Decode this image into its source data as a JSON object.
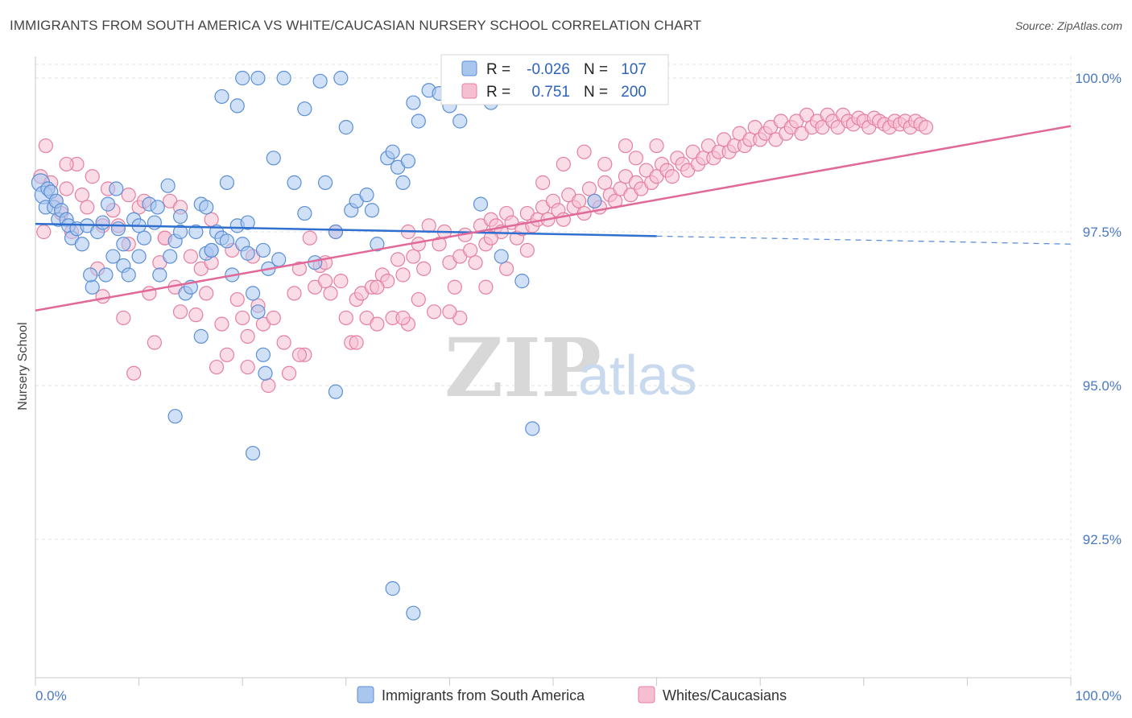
{
  "header": {
    "title": "IMMIGRANTS FROM SOUTH AMERICA VS WHITE/CAUCASIAN NURSERY SCHOOL CORRELATION CHART",
    "source": "Source: ZipAtlas.com"
  },
  "watermark": {
    "zip": "ZIP",
    "atlas": "atlas"
  },
  "colors": {
    "blue": "#5b8fd6",
    "blue_fill": "#a9c6ee",
    "blue_line": "#2f6fcf",
    "pink": "#e67fa2",
    "pink_fill": "#f6bfd1",
    "pink_line": "#e0699a",
    "tick_text": "#4a78c2"
  },
  "legend": {
    "r_label": "R =",
    "n_label": "N =",
    "series": [
      {
        "r": "-0.026",
        "n": "107"
      },
      {
        "r": "0.751",
        "n": "200"
      }
    ]
  },
  "bottom_legend": [
    "Immigrants from South America",
    "Whites/Caucasians"
  ],
  "chart_data": {
    "type": "scatter",
    "title": "IMMIGRANTS FROM SOUTH AMERICA VS WHITE/CAUCASIAN NURSERY SCHOOL CORRELATION CHART",
    "xlabel": "",
    "ylabel": "Nursery School",
    "xlim": [
      0,
      100
    ],
    "ylim": [
      90.5,
      100.5
    ],
    "x_tick_labels": [
      "0.0%",
      "100.0%"
    ],
    "y_ticks": [
      92.5,
      95.0,
      97.5,
      100.0
    ],
    "y_tick_labels": [
      "92.5%",
      "95.0%",
      "97.5%",
      "100.0%"
    ],
    "grid": true,
    "legend_position": "top-center",
    "series": [
      {
        "name": "Immigrants from South America",
        "r": -0.026,
        "n": 107,
        "trend": {
          "x": [
            0,
            60
          ],
          "y": [
            97.63,
            97.43
          ],
          "dashed_to": [
            100,
            97.3
          ]
        },
        "points": [
          [
            0.5,
            98.3
          ],
          [
            0.8,
            98.1
          ],
          [
            1,
            97.9
          ],
          [
            1.2,
            98.2
          ],
          [
            1.5,
            98.15
          ],
          [
            1.8,
            97.9
          ],
          [
            2,
            98.0
          ],
          [
            2.2,
            97.7
          ],
          [
            2.5,
            97.85
          ],
          [
            3,
            97.7
          ],
          [
            3.2,
            97.6
          ],
          [
            3.5,
            97.4
          ],
          [
            4,
            97.55
          ],
          [
            4.5,
            97.3
          ],
          [
            5,
            97.6
          ],
          [
            5.5,
            96.6
          ],
          [
            5.3,
            96.8
          ],
          [
            6,
            97.5
          ],
          [
            6.5,
            97.65
          ],
          [
            6.8,
            96.8
          ],
          [
            7,
            97.95
          ],
          [
            7.5,
            97.1
          ],
          [
            7.8,
            98.2
          ],
          [
            8,
            97.55
          ],
          [
            8.5,
            96.95
          ],
          [
            9,
            96.8
          ],
          [
            9.5,
            97.7
          ],
          [
            10,
            97.1
          ],
          [
            10.5,
            97.4
          ],
          [
            11,
            97.95
          ],
          [
            11.5,
            97.65
          ],
          [
            11.8,
            97.9
          ],
          [
            12,
            96.8
          ],
          [
            12.8,
            98.25
          ],
          [
            13,
            97.1
          ],
          [
            13.5,
            97.35
          ],
          [
            14,
            97.75
          ],
          [
            14.5,
            96.5
          ],
          [
            15,
            96.6
          ],
          [
            15.5,
            97.5
          ],
          [
            16,
            97.95
          ],
          [
            16.5,
            97.15
          ],
          [
            17,
            97.2
          ],
          [
            17.5,
            97.5
          ],
          [
            18,
            97.4
          ],
          [
            18.5,
            97.35
          ],
          [
            19,
            96.8
          ],
          [
            19.5,
            97.6
          ],
          [
            20,
            97.3
          ],
          [
            20.5,
            97.15
          ],
          [
            21,
            96.5
          ],
          [
            22,
            97.2
          ],
          [
            22.5,
            96.9
          ],
          [
            23,
            98.7
          ],
          [
            23.5,
            97.05
          ],
          [
            24,
            100.0
          ],
          [
            25,
            98.3
          ],
          [
            26,
            97.8
          ],
          [
            27,
            97.0
          ],
          [
            28,
            98.3
          ],
          [
            29,
            97.5
          ],
          [
            30,
            99.2
          ],
          [
            30.5,
            97.85
          ],
          [
            31,
            98.0
          ],
          [
            32,
            98.1
          ],
          [
            32.5,
            97.85
          ],
          [
            33,
            97.3
          ],
          [
            34,
            98.7
          ],
          [
            34.5,
            98.8
          ],
          [
            35,
            98.55
          ],
          [
            35.5,
            98.3
          ],
          [
            36,
            98.65
          ],
          [
            36.5,
            99.6
          ],
          [
            37,
            99.3
          ],
          [
            38,
            99.8
          ],
          [
            39,
            99.75
          ],
          [
            40,
            99.55
          ],
          [
            41,
            99.3
          ],
          [
            43,
            97.95
          ],
          [
            44,
            99.6
          ],
          [
            27.5,
            99.95
          ],
          [
            29.5,
            100.0
          ],
          [
            21.5,
            100.0
          ],
          [
            26,
            99.5
          ],
          [
            18,
            99.7
          ],
          [
            19.5,
            99.55
          ],
          [
            20,
            100.0
          ],
          [
            18.5,
            98.3
          ],
          [
            17,
            97.2
          ],
          [
            21.5,
            96.2
          ],
          [
            22,
            95.5
          ],
          [
            22.2,
            95.2
          ],
          [
            21,
            93.9
          ],
          [
            16,
            95.8
          ],
          [
            29,
            94.9
          ],
          [
            13.5,
            94.5
          ],
          [
            34.5,
            91.7
          ],
          [
            36.5,
            91.3
          ],
          [
            45,
            97.1
          ],
          [
            47,
            96.7
          ],
          [
            48,
            94.3
          ],
          [
            54,
            98.0
          ],
          [
            8.5,
            97.3
          ],
          [
            10,
            97.6
          ],
          [
            14,
            97.5
          ],
          [
            16.5,
            97.9
          ],
          [
            20.5,
            97.65
          ]
        ]
      },
      {
        "name": "Whites/Caucasians",
        "r": 0.751,
        "n": 200,
        "trend": {
          "x": [
            0,
            100
          ],
          "y": [
            96.22,
            99.22
          ]
        },
        "points": [
          [
            0.5,
            98.4
          ],
          [
            1,
            98.9
          ],
          [
            1.5,
            98.3
          ],
          [
            2,
            98.0
          ],
          [
            2.5,
            97.8
          ],
          [
            3,
            98.2
          ],
          [
            3.5,
            97.5
          ],
          [
            4,
            98.6
          ],
          [
            4.5,
            98.1
          ],
          [
            5,
            97.9
          ],
          [
            5.5,
            98.4
          ],
          [
            6,
            96.9
          ],
          [
            6.5,
            96.45
          ],
          [
            7,
            98.2
          ],
          [
            7.5,
            97.85
          ],
          [
            8,
            97.6
          ],
          [
            8.5,
            96.1
          ],
          [
            9,
            97.3
          ],
          [
            9.5,
            95.2
          ],
          [
            10,
            97.9
          ],
          [
            11,
            96.5
          ],
          [
            11.5,
            95.7
          ],
          [
            12,
            97.0
          ],
          [
            12.5,
            97.4
          ],
          [
            13,
            98.0
          ],
          [
            13.5,
            96.6
          ],
          [
            14,
            96.2
          ],
          [
            15,
            97.1
          ],
          [
            15.5,
            96.15
          ],
          [
            16,
            96.9
          ],
          [
            16.5,
            96.5
          ],
          [
            17,
            97.0
          ],
          [
            17.5,
            95.3
          ],
          [
            18,
            96.0
          ],
          [
            18.5,
            95.5
          ],
          [
            19,
            97.2
          ],
          [
            19.5,
            96.4
          ],
          [
            20,
            96.1
          ],
          [
            20.5,
            95.8
          ],
          [
            21,
            97.1
          ],
          [
            21.5,
            96.3
          ],
          [
            22,
            96.0
          ],
          [
            23,
            96.1
          ],
          [
            24,
            95.7
          ],
          [
            24.5,
            95.2
          ],
          [
            25,
            96.5
          ],
          [
            25.5,
            96.9
          ],
          [
            26,
            95.5
          ],
          [
            26.5,
            97.4
          ],
          [
            27,
            96.6
          ],
          [
            27.5,
            96.95
          ],
          [
            28,
            97.0
          ],
          [
            28.5,
            96.5
          ],
          [
            29,
            97.5
          ],
          [
            29.5,
            96.7
          ],
          [
            30,
            96.1
          ],
          [
            30.5,
            95.7
          ],
          [
            31,
            96.4
          ],
          [
            31.5,
            96.5
          ],
          [
            32,
            96.1
          ],
          [
            32.5,
            96.6
          ],
          [
            33,
            96.0
          ],
          [
            33.5,
            96.8
          ],
          [
            34,
            96.7
          ],
          [
            34.5,
            96.1
          ],
          [
            35,
            97.05
          ],
          [
            35.5,
            96.8
          ],
          [
            36,
            97.5
          ],
          [
            36.5,
            97.1
          ],
          [
            37,
            97.3
          ],
          [
            37.5,
            96.9
          ],
          [
            38,
            97.6
          ],
          [
            38.5,
            96.2
          ],
          [
            39,
            97.3
          ],
          [
            39.5,
            97.5
          ],
          [
            40,
            97.0
          ],
          [
            40.5,
            96.6
          ],
          [
            41,
            97.1
          ],
          [
            41.5,
            97.45
          ],
          [
            42,
            97.2
          ],
          [
            42.5,
            97.0
          ],
          [
            43,
            97.6
          ],
          [
            43.5,
            97.3
          ],
          [
            44,
            97.7
          ],
          [
            44.5,
            97.6
          ],
          [
            45,
            97.5
          ],
          [
            45.5,
            97.8
          ],
          [
            46,
            97.65
          ],
          [
            46.5,
            97.4
          ],
          [
            47,
            97.55
          ],
          [
            47.5,
            97.8
          ],
          [
            48,
            97.6
          ],
          [
            48.5,
            97.7
          ],
          [
            49,
            97.9
          ],
          [
            49.5,
            97.7
          ],
          [
            50,
            98.0
          ],
          [
            50.5,
            97.85
          ],
          [
            51,
            97.7
          ],
          [
            51.5,
            98.1
          ],
          [
            52,
            97.9
          ],
          [
            52.5,
            98.0
          ],
          [
            53,
            97.8
          ],
          [
            53.5,
            98.2
          ],
          [
            54,
            98.0
          ],
          [
            54.5,
            97.9
          ],
          [
            55,
            98.3
          ],
          [
            55.5,
            98.1
          ],
          [
            56,
            98.0
          ],
          [
            56.5,
            98.2
          ],
          [
            57,
            98.4
          ],
          [
            57.5,
            98.1
          ],
          [
            58,
            98.3
          ],
          [
            58.5,
            98.2
          ],
          [
            59,
            98.5
          ],
          [
            59.5,
            98.3
          ],
          [
            60,
            98.4
          ],
          [
            60.5,
            98.6
          ],
          [
            61,
            98.5
          ],
          [
            61.5,
            98.4
          ],
          [
            62,
            98.7
          ],
          [
            62.5,
            98.6
          ],
          [
            63,
            98.5
          ],
          [
            63.5,
            98.8
          ],
          [
            64,
            98.6
          ],
          [
            64.5,
            98.7
          ],
          [
            65,
            98.9
          ],
          [
            65.5,
            98.7
          ],
          [
            66,
            98.8
          ],
          [
            66.5,
            99.0
          ],
          [
            67,
            98.8
          ],
          [
            67.5,
            98.9
          ],
          [
            68,
            99.1
          ],
          [
            68.5,
            98.9
          ],
          [
            69,
            99.0
          ],
          [
            69.5,
            99.2
          ],
          [
            70,
            99.0
          ],
          [
            70.5,
            99.1
          ],
          [
            71,
            99.2
          ],
          [
            71.5,
            99.0
          ],
          [
            72,
            99.3
          ],
          [
            72.5,
            99.1
          ],
          [
            73,
            99.2
          ],
          [
            73.5,
            99.3
          ],
          [
            74,
            99.1
          ],
          [
            74.5,
            99.4
          ],
          [
            75,
            99.2
          ],
          [
            75.5,
            99.3
          ],
          [
            76,
            99.2
          ],
          [
            76.5,
            99.4
          ],
          [
            77,
            99.3
          ],
          [
            77.5,
            99.2
          ],
          [
            78,
            99.4
          ],
          [
            78.5,
            99.3
          ],
          [
            79,
            99.25
          ],
          [
            79.5,
            99.35
          ],
          [
            80,
            99.3
          ],
          [
            80.5,
            99.2
          ],
          [
            81,
            99.35
          ],
          [
            81.5,
            99.3
          ],
          [
            82,
            99.25
          ],
          [
            82.5,
            99.2
          ],
          [
            83,
            99.3
          ],
          [
            83.5,
            99.25
          ],
          [
            84,
            99.3
          ],
          [
            84.5,
            99.2
          ],
          [
            85,
            99.3
          ],
          [
            85.5,
            99.25
          ],
          [
            86,
            99.2
          ],
          [
            47.5,
            97.2
          ],
          [
            45.5,
            96.9
          ],
          [
            44,
            97.4
          ],
          [
            43.5,
            96.6
          ],
          [
            41,
            96.1
          ],
          [
            40,
            96.2
          ],
          [
            37,
            96.4
          ],
          [
            36,
            96.0
          ],
          [
            35.5,
            96.1
          ],
          [
            33,
            96.6
          ],
          [
            31,
            95.7
          ],
          [
            28,
            96.7
          ],
          [
            25.5,
            95.5
          ],
          [
            22.5,
            95.0
          ],
          [
            20.5,
            95.3
          ],
          [
            17,
            97.7
          ],
          [
            14,
            97.9
          ],
          [
            12.5,
            97.4
          ],
          [
            10.5,
            98.0
          ],
          [
            9,
            98.1
          ],
          [
            6.5,
            97.6
          ],
          [
            3,
            98.6
          ],
          [
            0.8,
            97.5
          ],
          [
            49,
            98.3
          ],
          [
            51,
            98.6
          ],
          [
            53,
            98.8
          ],
          [
            55,
            98.6
          ],
          [
            57,
            98.9
          ],
          [
            58,
            98.7
          ],
          [
            60,
            98.9
          ]
        ]
      }
    ]
  }
}
